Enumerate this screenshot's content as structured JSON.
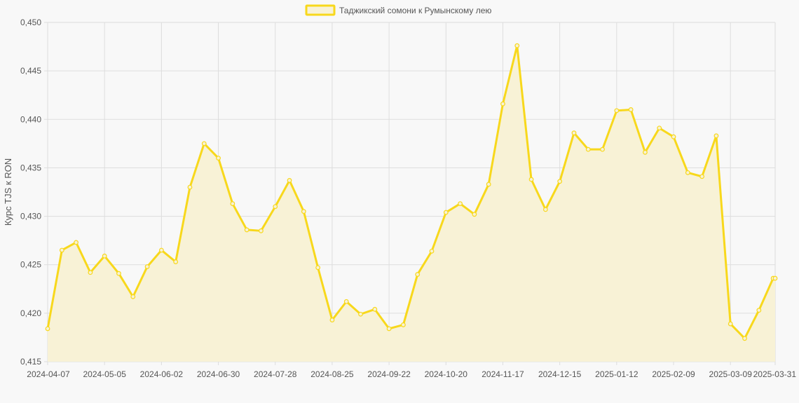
{
  "chart_data": {
    "type": "line",
    "title": "",
    "ylabel": "Курс TJS к RON",
    "xlabel": "",
    "legend": {
      "position": "top",
      "label": "Таджикский сомони к Румынскому лею"
    },
    "grid": true,
    "fill": true,
    "colors": {
      "line": "#f8d81c",
      "fill": "#f8f2d6",
      "grid": "#dddddd",
      "axis_text": "#555555",
      "background": "#f8f8f8"
    },
    "ylim": [
      0.415,
      0.45
    ],
    "y_ticks": [
      "0,450",
      "0,445",
      "0,440",
      "0,435",
      "0,430",
      "0,425",
      "0,420",
      "0,415"
    ],
    "x_tick_labels": [
      "2024-04-07",
      "2024-05-05",
      "2024-06-02",
      "2024-06-30",
      "2024-07-28",
      "2024-08-25",
      "2024-09-22",
      "2024-10-20",
      "2024-11-17",
      "2024-12-15",
      "2025-01-12",
      "2025-02-09",
      "2025-03-09",
      "2025-03-31"
    ],
    "series": [
      {
        "name": "Таджикский сомони к Румынскому лею",
        "x": [
          "2024-04-07",
          "2024-04-14",
          "2024-04-21",
          "2024-04-28",
          "2024-05-05",
          "2024-05-12",
          "2024-05-19",
          "2024-05-26",
          "2024-06-02",
          "2024-06-09",
          "2024-06-16",
          "2024-06-23",
          "2024-06-30",
          "2024-07-07",
          "2024-07-14",
          "2024-07-21",
          "2024-07-28",
          "2024-08-04",
          "2024-08-11",
          "2024-08-18",
          "2024-08-25",
          "2024-09-01",
          "2024-09-08",
          "2024-09-15",
          "2024-09-22",
          "2024-09-29",
          "2024-10-06",
          "2024-10-13",
          "2024-10-20",
          "2024-10-27",
          "2024-11-03",
          "2024-11-10",
          "2024-11-17",
          "2024-11-24",
          "2024-12-01",
          "2024-12-08",
          "2024-12-15",
          "2024-12-22",
          "2024-12-29",
          "2025-01-05",
          "2025-01-12",
          "2025-01-19",
          "2025-01-26",
          "2025-02-02",
          "2025-02-09",
          "2025-02-16",
          "2025-02-23",
          "2025-03-02",
          "2025-03-09",
          "2025-03-16",
          "2025-03-23",
          "2025-03-30",
          "2025-03-31"
        ],
        "values": [
          0.4184,
          0.4265,
          0.4273,
          0.4242,
          0.4259,
          0.4241,
          0.4217,
          0.4248,
          0.4265,
          0.4253,
          0.433,
          0.4375,
          0.436,
          0.4313,
          0.4286,
          0.4285,
          0.431,
          0.4337,
          0.4305,
          0.4247,
          0.4193,
          0.4212,
          0.4199,
          0.4204,
          0.4184,
          0.4188,
          0.424,
          0.4264,
          0.4304,
          0.4313,
          0.4302,
          0.4333,
          0.4416,
          0.4476,
          0.4338,
          0.4307,
          0.4336,
          0.4386,
          0.4369,
          0.4369,
          0.4409,
          0.441,
          0.4366,
          0.4391,
          0.4382,
          0.4345,
          0.4341,
          0.4383,
          0.4189,
          0.4174,
          0.4203,
          0.4236,
          0.4236
        ]
      }
    ]
  }
}
